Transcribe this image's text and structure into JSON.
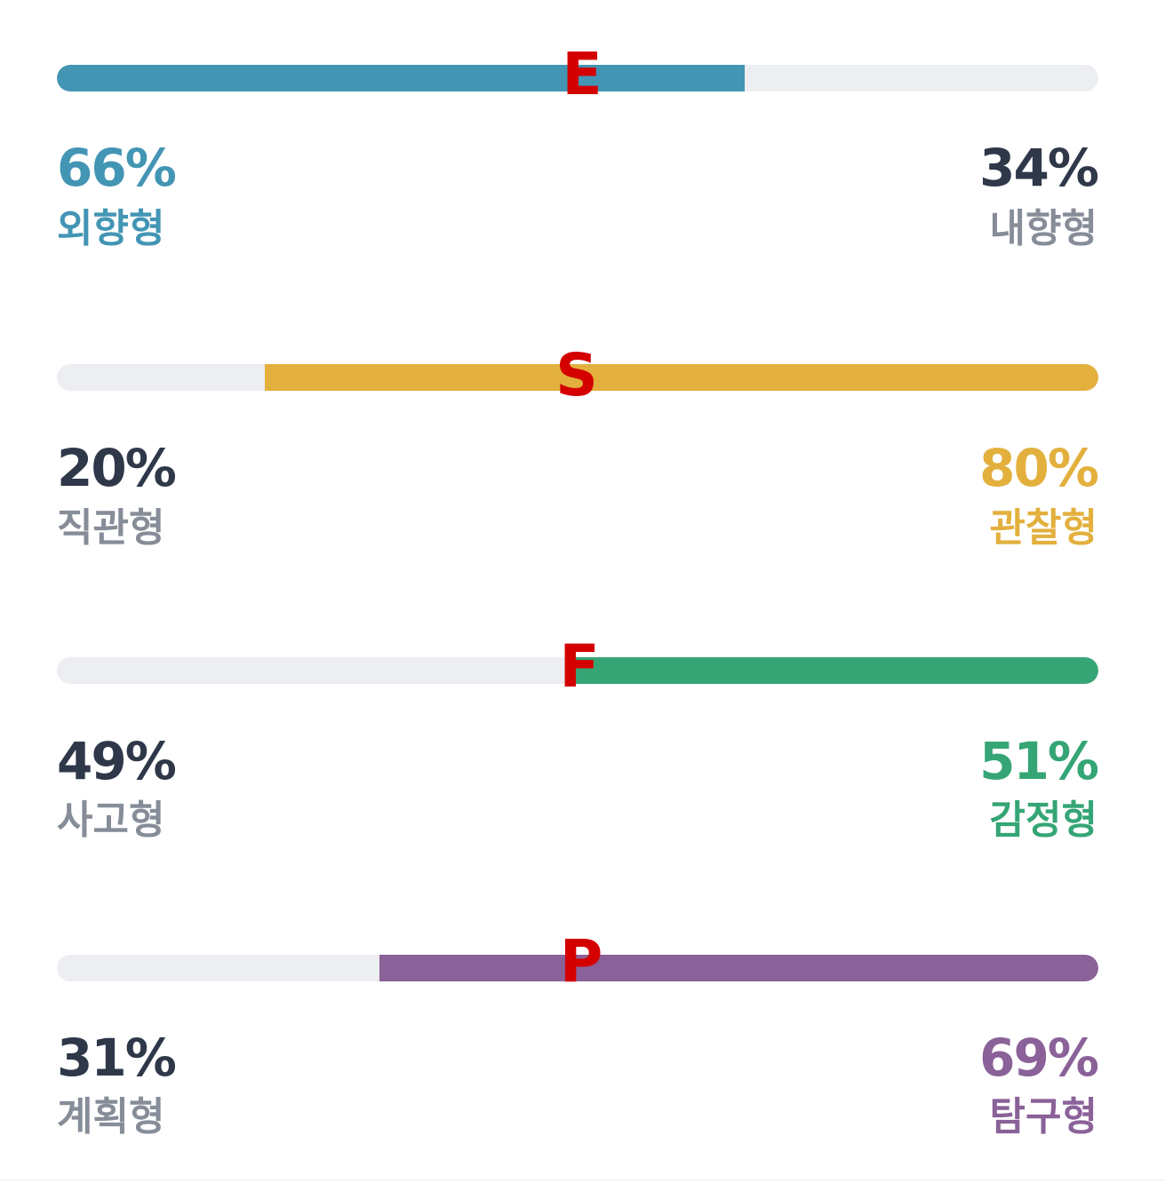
{
  "colors": {
    "track": "#eceef1",
    "marker": "#d40000",
    "dark_text": "#2e3849",
    "muted_text": "#868d98"
  },
  "traits": [
    {
      "marker": "E",
      "color": "#4395b4",
      "dominant_side": "left",
      "left": {
        "percent": "66%",
        "label": "외향형"
      },
      "right": {
        "percent": "34%",
        "label": "내향형"
      },
      "fill_fraction": 0.66
    },
    {
      "marker": "S",
      "color": "#e3b03e",
      "dominant_side": "right",
      "left": {
        "percent": "20%",
        "label": "직관형"
      },
      "right": {
        "percent": "80%",
        "label": "관찰형"
      },
      "fill_fraction": 0.8
    },
    {
      "marker": "F",
      "color": "#35a575",
      "dominant_side": "right",
      "left": {
        "percent": "49%",
        "label": "사고형"
      },
      "right": {
        "percent": "51%",
        "label": "감정형"
      },
      "fill_fraction": 0.51
    },
    {
      "marker": "P",
      "color": "#8a6198",
      "dominant_side": "right",
      "left": {
        "percent": "31%",
        "label": "계획형"
      },
      "right": {
        "percent": "69%",
        "label": "탐구형"
      },
      "fill_fraction": 0.69
    }
  ]
}
